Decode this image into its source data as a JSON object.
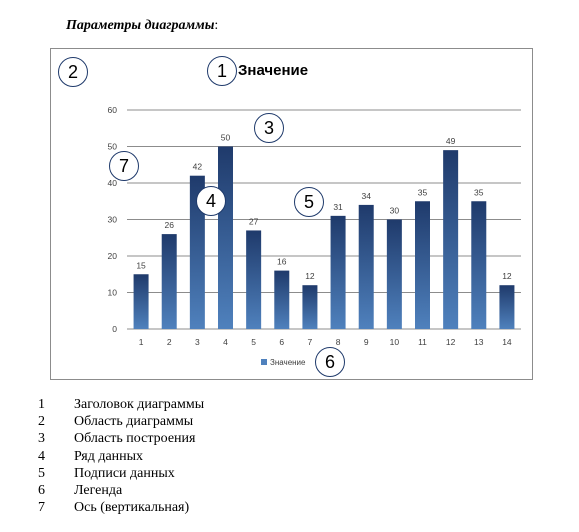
{
  "heading": {
    "text": "Параметры диаграммы",
    "suffix": ":"
  },
  "chart_data": {
    "type": "bar",
    "title": "Значение",
    "categories": [
      "1",
      "2",
      "3",
      "4",
      "5",
      "6",
      "7",
      "8",
      "9",
      "10",
      "11",
      "12",
      "13",
      "14"
    ],
    "series": [
      {
        "name": "Значение",
        "values": [
          15,
          26,
          42,
          50,
          27,
          16,
          12,
          31,
          34,
          30,
          35,
          49,
          35,
          12
        ]
      }
    ],
    "ylim": [
      0,
      60
    ],
    "yticks": [
      0,
      10,
      20,
      30,
      40,
      50,
      60
    ],
    "grid": true,
    "legend": "bottom",
    "bar_color_top": "#1f3a6b",
    "bar_color_bottom": "#4f81bd"
  },
  "callouts": [
    "1",
    "2",
    "3",
    "4",
    "5",
    "6",
    "7"
  ],
  "legend_items": [
    {
      "num": "1",
      "text": "Заголовок диаграммы"
    },
    {
      "num": "2",
      "text": "Область диаграммы"
    },
    {
      "num": "3",
      "text": "Область построения"
    },
    {
      "num": "4",
      "text": "Ряд данных"
    },
    {
      "num": "5",
      "text": "Подписи данных"
    },
    {
      "num": "6",
      "text": "Легенда"
    },
    {
      "num": "7",
      "text": "Ось (вертикальная)"
    }
  ]
}
